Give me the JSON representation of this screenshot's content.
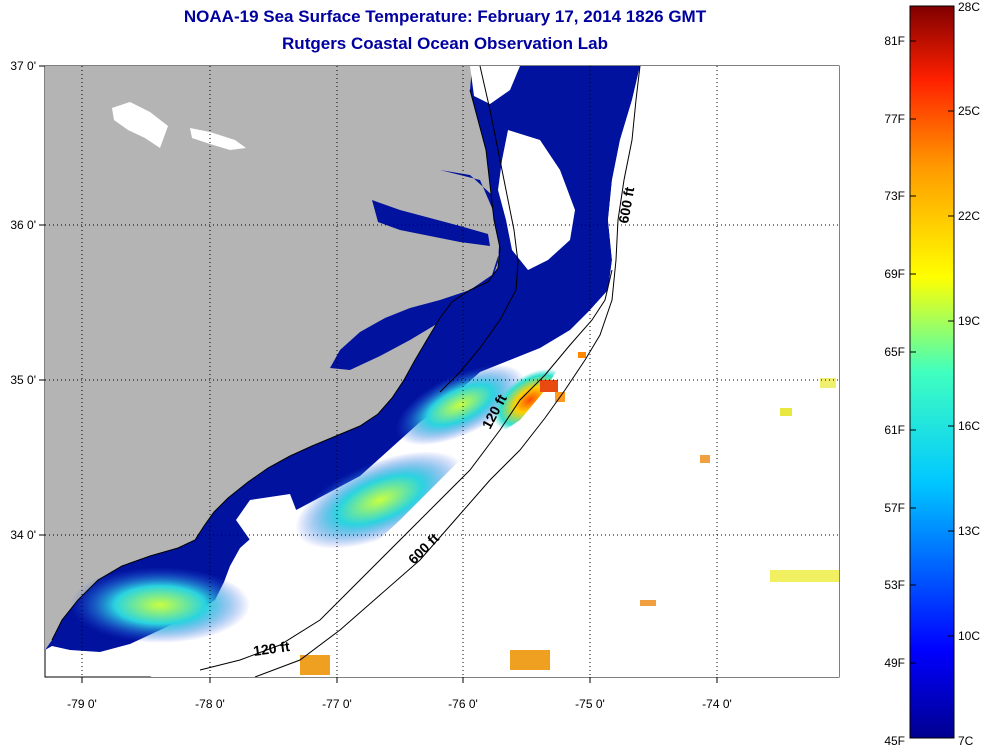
{
  "title": {
    "line1": "NOAA-19 Sea Surface Temperature:  February 17, 2014 1826 GMT",
    "line2": "Rutgers Coastal Ocean Observation Lab"
  },
  "map": {
    "lat_labels": [
      "37 0'",
      "36 0'",
      "35 0'",
      "34 0'"
    ],
    "lon_labels": [
      "-79 0'",
      "-78 0'",
      "-77 0'",
      "-76 0'",
      "-75 0'",
      "-74 0'"
    ],
    "isobaths": [
      "600 ft",
      "120 ft",
      "600 ft",
      "120 ft"
    ],
    "colors": {
      "land": "#b4b4b4",
      "water_cold": "#00109c",
      "water_mid": "#1a4fd8",
      "water_warm": "#19c8e6",
      "cloud": "#ffffff"
    }
  },
  "colorbar": {
    "fahrenheit": [
      "81F",
      "77F",
      "73F",
      "69F",
      "65F",
      "61F",
      "57F",
      "53F",
      "49F",
      "45F"
    ],
    "celsius": [
      "28C",
      "25C",
      "22C",
      "19C",
      "16C",
      "13C",
      "10C",
      "7C"
    ]
  }
}
